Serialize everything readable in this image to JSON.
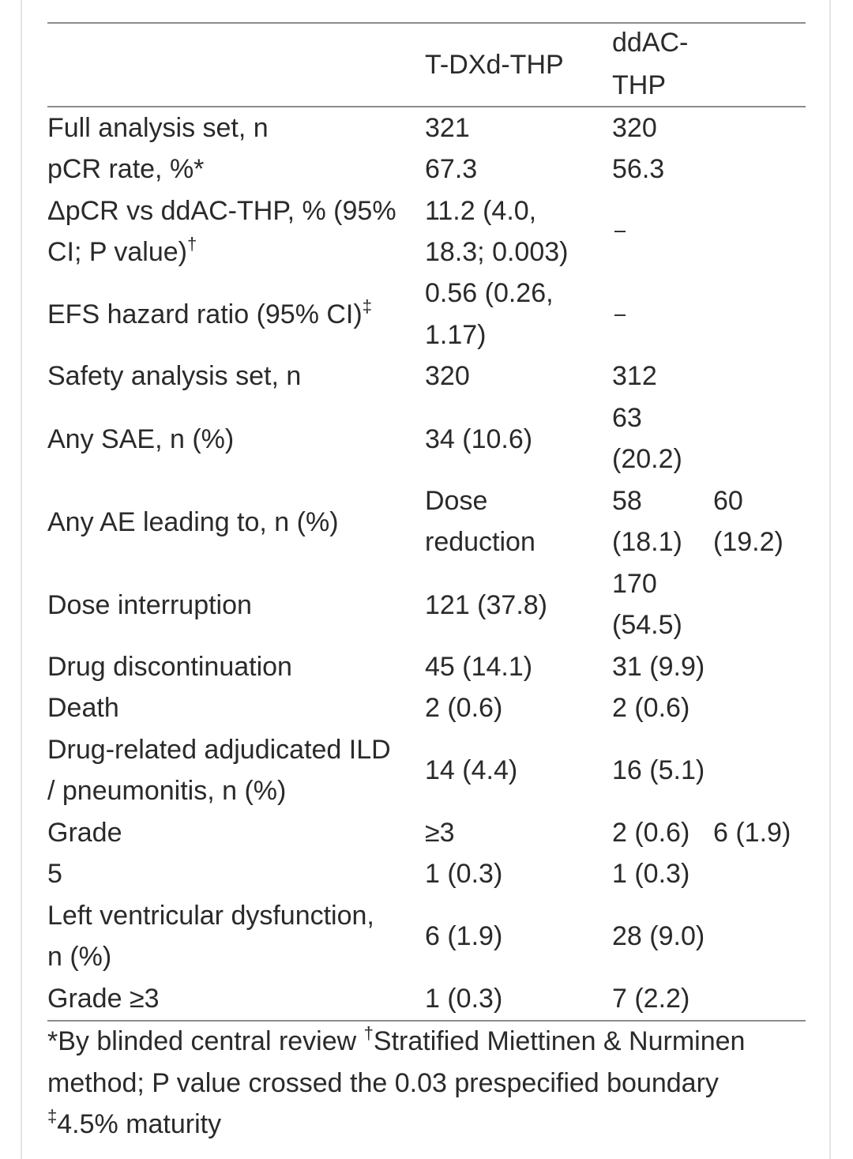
{
  "table": {
    "header": {
      "col2": "T-DXd-THP",
      "col3_line1": "ddAC-",
      "col3_line2": "THP"
    },
    "rows": {
      "fas": {
        "label": "Full analysis set, n",
        "c2": "321",
        "c3": "320"
      },
      "pcr": {
        "label": "pCR rate, %*",
        "c2": "67.3",
        "c3": "56.3"
      },
      "dpcr": {
        "label_line1": "ΔpCR vs ddAC-THP, % (95%",
        "label_line2": "CI; P value)",
        "label_sup": "†",
        "c2_line1": "11.2 (4.0,",
        "c2_line2": "18.3; 0.003)",
        "c3": "–"
      },
      "efs": {
        "label": "EFS hazard ratio (95% CI)",
        "label_sup": "‡",
        "c2_line1": "0.56 (0.26,",
        "c2_line2": "1.17)",
        "c3": "–"
      },
      "sas": {
        "label": "Safety analysis set, n",
        "c2": "320",
        "c3": "312"
      },
      "sae": {
        "label": "Any SAE, n (%)",
        "c2": "34 (10.6)",
        "c3_line1": "63",
        "c3_line2": "(20.2)"
      },
      "ae": {
        "label": "Any AE leading to, n (%)",
        "c2_line1": "Dose",
        "c2_line2": "reduction",
        "c3_line1": "58",
        "c3_line2": "(18.1)",
        "c4_line1": "60",
        "c4_line2": "(19.2)"
      },
      "di": {
        "label": "Dose interruption",
        "c2": "121 (37.8)",
        "c3_line1": "170",
        "c3_line2": "(54.5)"
      },
      "dd": {
        "label": "Drug discontinuation",
        "c2": "45 (14.1)",
        "c3": "31 (9.9)"
      },
      "death": {
        "label": "Death",
        "c2": "2 (0.6)",
        "c3": "2 (0.6)"
      },
      "ild": {
        "label_line1": "Drug-related adjudicated ILD",
        "label_line2": "/ pneumonitis, n (%)",
        "c2": "14 (4.4)",
        "c3": "16 (5.1)"
      },
      "grade": {
        "label": "Grade",
        "c2": "≥3",
        "c3": "2 (0.6)",
        "c4": "6 (1.9)"
      },
      "g5": {
        "label": "5",
        "c2": "1 (0.3)",
        "c3": "1 (0.3)"
      },
      "lvd": {
        "label_line1": "Left ventricular dysfunction,",
        "label_line2": "n (%)",
        "c2": "6 (1.9)",
        "c3": "28 (9.0)"
      },
      "g3": {
        "label": "Grade ≥3",
        "c2": "1 (0.3)",
        "c3": "7 (2.2)"
      }
    },
    "footnotes": {
      "line1_a": "*By blinded central review ",
      "line1_sup": "†",
      "line1_b": "Stratified Miettinen & Nurminen",
      "line2": "method; P value crossed the 0.03 prespecified boundary",
      "line3_sup": "‡",
      "line3": "4.5% maturity"
    }
  }
}
